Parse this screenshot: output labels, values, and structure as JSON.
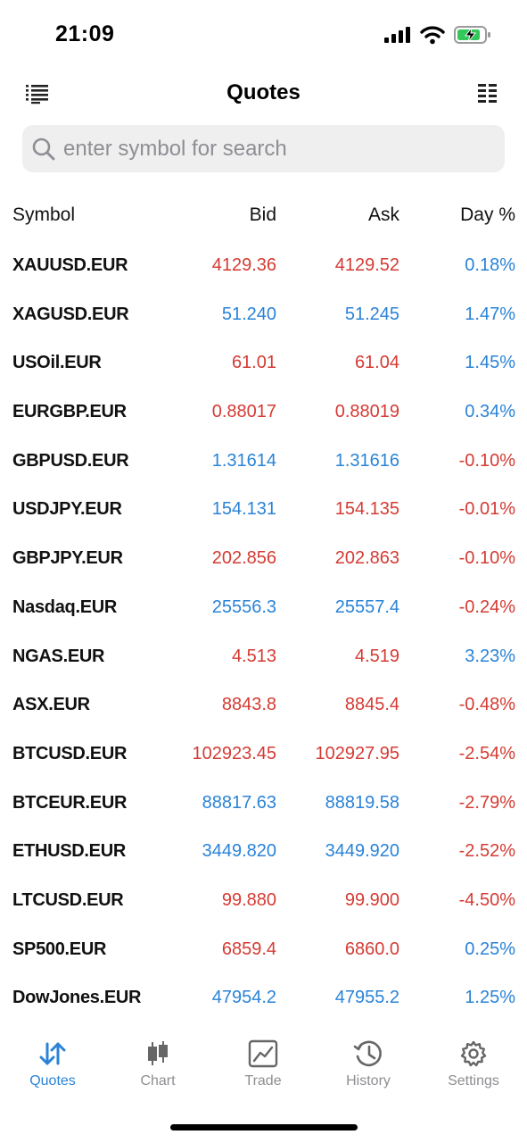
{
  "status": {
    "time": "21:09"
  },
  "header": {
    "title": "Quotes"
  },
  "search": {
    "placeholder": "enter symbol for search"
  },
  "columns": {
    "symbol": "Symbol",
    "bid": "Bid",
    "ask": "Ask",
    "day": "Day %"
  },
  "quotes": [
    {
      "symbol": "XAUUSD.EUR",
      "bid": "4129.36",
      "ask": "4129.52",
      "day": "0.18%",
      "bid_color": "red",
      "ask_color": "red",
      "day_color": "blue"
    },
    {
      "symbol": "XAGUSD.EUR",
      "bid": "51.240",
      "ask": "51.245",
      "day": "1.47%",
      "bid_color": "blue",
      "ask_color": "blue",
      "day_color": "blue"
    },
    {
      "symbol": "USOil.EUR",
      "bid": "61.01",
      "ask": "61.04",
      "day": "1.45%",
      "bid_color": "red",
      "ask_color": "red",
      "day_color": "blue"
    },
    {
      "symbol": "EURGBP.EUR",
      "bid": "0.88017",
      "ask": "0.88019",
      "day": "0.34%",
      "bid_color": "red",
      "ask_color": "red",
      "day_color": "blue"
    },
    {
      "symbol": "GBPUSD.EUR",
      "bid": "1.31614",
      "ask": "1.31616",
      "day": "-0.10%",
      "bid_color": "blue",
      "ask_color": "blue",
      "day_color": "red"
    },
    {
      "symbol": "USDJPY.EUR",
      "bid": "154.131",
      "ask": "154.135",
      "day": "-0.01%",
      "bid_color": "blue",
      "ask_color": "red",
      "day_color": "red"
    },
    {
      "symbol": "GBPJPY.EUR",
      "bid": "202.856",
      "ask": "202.863",
      "day": "-0.10%",
      "bid_color": "red",
      "ask_color": "red",
      "day_color": "red"
    },
    {
      "symbol": "Nasdaq.EUR",
      "bid": "25556.3",
      "ask": "25557.4",
      "day": "-0.24%",
      "bid_color": "blue",
      "ask_color": "blue",
      "day_color": "red"
    },
    {
      "symbol": "NGAS.EUR",
      "bid": "4.513",
      "ask": "4.519",
      "day": "3.23%",
      "bid_color": "red",
      "ask_color": "red",
      "day_color": "blue"
    },
    {
      "symbol": "ASX.EUR",
      "bid": "8843.8",
      "ask": "8845.4",
      "day": "-0.48%",
      "bid_color": "red",
      "ask_color": "red",
      "day_color": "red"
    },
    {
      "symbol": "BTCUSD.EUR",
      "bid": "102923.45",
      "ask": "102927.95",
      "day": "-2.54%",
      "bid_color": "red",
      "ask_color": "red",
      "day_color": "red"
    },
    {
      "symbol": "BTCEUR.EUR",
      "bid": "88817.63",
      "ask": "88819.58",
      "day": "-2.79%",
      "bid_color": "blue",
      "ask_color": "blue",
      "day_color": "red"
    },
    {
      "symbol": "ETHUSD.EUR",
      "bid": "3449.820",
      "ask": "3449.920",
      "day": "-2.52%",
      "bid_color": "blue",
      "ask_color": "blue",
      "day_color": "red"
    },
    {
      "symbol": "LTCUSD.EUR",
      "bid": "99.880",
      "ask": "99.900",
      "day": "-4.50%",
      "bid_color": "red",
      "ask_color": "red",
      "day_color": "red"
    },
    {
      "symbol": "SP500.EUR",
      "bid": "6859.4",
      "ask": "6860.0",
      "day": "0.25%",
      "bid_color": "red",
      "ask_color": "red",
      "day_color": "blue"
    },
    {
      "symbol": "DowJones.EUR",
      "bid": "47954.2",
      "ask": "47955.2",
      "day": "1.25%",
      "bid_color": "blue",
      "ask_color": "blue",
      "day_color": "blue"
    }
  ],
  "tabs": [
    {
      "label": "Quotes",
      "icon": "quotes-arrows-icon",
      "active": true
    },
    {
      "label": "Chart",
      "icon": "candlestick-icon",
      "active": false
    },
    {
      "label": "Trade",
      "icon": "trade-chart-icon",
      "active": false
    },
    {
      "label": "History",
      "icon": "history-clock-icon",
      "active": false
    },
    {
      "label": "Settings",
      "icon": "gear-icon",
      "active": false
    }
  ],
  "colors": {
    "red": "#d43b33",
    "blue": "#2a83d7",
    "inactive": "#8e8e93",
    "battery_green": "#34c759"
  }
}
